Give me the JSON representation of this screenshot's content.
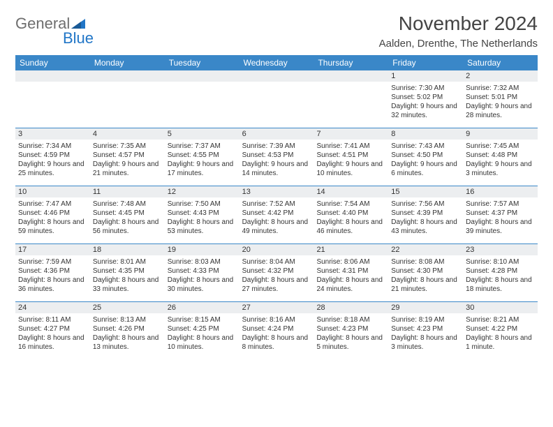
{
  "logo": {
    "word1": "General",
    "word2": "Blue"
  },
  "title": "November 2024",
  "location": "Aalden, Drenthe, The Netherlands",
  "colors": {
    "header_bg": "#3a87c8",
    "header_text": "#ffffff",
    "row_divider": "#3a87c8",
    "daynum_bg": "#eceef0",
    "text": "#333333",
    "logo_gray": "#6e6e6e",
    "logo_blue": "#2176c7",
    "page_bg": "#ffffff"
  },
  "typography": {
    "title_fontsize": 28,
    "location_fontsize": 15,
    "dayhead_fontsize": 12,
    "cell_fontsize": 10
  },
  "day_headers": [
    "Sunday",
    "Monday",
    "Tuesday",
    "Wednesday",
    "Thursday",
    "Friday",
    "Saturday"
  ],
  "weeks": [
    [
      {
        "n": "",
        "sr": "",
        "ss": "",
        "dl": ""
      },
      {
        "n": "",
        "sr": "",
        "ss": "",
        "dl": ""
      },
      {
        "n": "",
        "sr": "",
        "ss": "",
        "dl": ""
      },
      {
        "n": "",
        "sr": "",
        "ss": "",
        "dl": ""
      },
      {
        "n": "",
        "sr": "",
        "ss": "",
        "dl": ""
      },
      {
        "n": "1",
        "sr": "Sunrise: 7:30 AM",
        "ss": "Sunset: 5:02 PM",
        "dl": "Daylight: 9 hours and 32 minutes."
      },
      {
        "n": "2",
        "sr": "Sunrise: 7:32 AM",
        "ss": "Sunset: 5:01 PM",
        "dl": "Daylight: 9 hours and 28 minutes."
      }
    ],
    [
      {
        "n": "3",
        "sr": "Sunrise: 7:34 AM",
        "ss": "Sunset: 4:59 PM",
        "dl": "Daylight: 9 hours and 25 minutes."
      },
      {
        "n": "4",
        "sr": "Sunrise: 7:35 AM",
        "ss": "Sunset: 4:57 PM",
        "dl": "Daylight: 9 hours and 21 minutes."
      },
      {
        "n": "5",
        "sr": "Sunrise: 7:37 AM",
        "ss": "Sunset: 4:55 PM",
        "dl": "Daylight: 9 hours and 17 minutes."
      },
      {
        "n": "6",
        "sr": "Sunrise: 7:39 AM",
        "ss": "Sunset: 4:53 PM",
        "dl": "Daylight: 9 hours and 14 minutes."
      },
      {
        "n": "7",
        "sr": "Sunrise: 7:41 AM",
        "ss": "Sunset: 4:51 PM",
        "dl": "Daylight: 9 hours and 10 minutes."
      },
      {
        "n": "8",
        "sr": "Sunrise: 7:43 AM",
        "ss": "Sunset: 4:50 PM",
        "dl": "Daylight: 9 hours and 6 minutes."
      },
      {
        "n": "9",
        "sr": "Sunrise: 7:45 AM",
        "ss": "Sunset: 4:48 PM",
        "dl": "Daylight: 9 hours and 3 minutes."
      }
    ],
    [
      {
        "n": "10",
        "sr": "Sunrise: 7:47 AM",
        "ss": "Sunset: 4:46 PM",
        "dl": "Daylight: 8 hours and 59 minutes."
      },
      {
        "n": "11",
        "sr": "Sunrise: 7:48 AM",
        "ss": "Sunset: 4:45 PM",
        "dl": "Daylight: 8 hours and 56 minutes."
      },
      {
        "n": "12",
        "sr": "Sunrise: 7:50 AM",
        "ss": "Sunset: 4:43 PM",
        "dl": "Daylight: 8 hours and 53 minutes."
      },
      {
        "n": "13",
        "sr": "Sunrise: 7:52 AM",
        "ss": "Sunset: 4:42 PM",
        "dl": "Daylight: 8 hours and 49 minutes."
      },
      {
        "n": "14",
        "sr": "Sunrise: 7:54 AM",
        "ss": "Sunset: 4:40 PM",
        "dl": "Daylight: 8 hours and 46 minutes."
      },
      {
        "n": "15",
        "sr": "Sunrise: 7:56 AM",
        "ss": "Sunset: 4:39 PM",
        "dl": "Daylight: 8 hours and 43 minutes."
      },
      {
        "n": "16",
        "sr": "Sunrise: 7:57 AM",
        "ss": "Sunset: 4:37 PM",
        "dl": "Daylight: 8 hours and 39 minutes."
      }
    ],
    [
      {
        "n": "17",
        "sr": "Sunrise: 7:59 AM",
        "ss": "Sunset: 4:36 PM",
        "dl": "Daylight: 8 hours and 36 minutes."
      },
      {
        "n": "18",
        "sr": "Sunrise: 8:01 AM",
        "ss": "Sunset: 4:35 PM",
        "dl": "Daylight: 8 hours and 33 minutes."
      },
      {
        "n": "19",
        "sr": "Sunrise: 8:03 AM",
        "ss": "Sunset: 4:33 PM",
        "dl": "Daylight: 8 hours and 30 minutes."
      },
      {
        "n": "20",
        "sr": "Sunrise: 8:04 AM",
        "ss": "Sunset: 4:32 PM",
        "dl": "Daylight: 8 hours and 27 minutes."
      },
      {
        "n": "21",
        "sr": "Sunrise: 8:06 AM",
        "ss": "Sunset: 4:31 PM",
        "dl": "Daylight: 8 hours and 24 minutes."
      },
      {
        "n": "22",
        "sr": "Sunrise: 8:08 AM",
        "ss": "Sunset: 4:30 PM",
        "dl": "Daylight: 8 hours and 21 minutes."
      },
      {
        "n": "23",
        "sr": "Sunrise: 8:10 AM",
        "ss": "Sunset: 4:28 PM",
        "dl": "Daylight: 8 hours and 18 minutes."
      }
    ],
    [
      {
        "n": "24",
        "sr": "Sunrise: 8:11 AM",
        "ss": "Sunset: 4:27 PM",
        "dl": "Daylight: 8 hours and 16 minutes."
      },
      {
        "n": "25",
        "sr": "Sunrise: 8:13 AM",
        "ss": "Sunset: 4:26 PM",
        "dl": "Daylight: 8 hours and 13 minutes."
      },
      {
        "n": "26",
        "sr": "Sunrise: 8:15 AM",
        "ss": "Sunset: 4:25 PM",
        "dl": "Daylight: 8 hours and 10 minutes."
      },
      {
        "n": "27",
        "sr": "Sunrise: 8:16 AM",
        "ss": "Sunset: 4:24 PM",
        "dl": "Daylight: 8 hours and 8 minutes."
      },
      {
        "n": "28",
        "sr": "Sunrise: 8:18 AM",
        "ss": "Sunset: 4:23 PM",
        "dl": "Daylight: 8 hours and 5 minutes."
      },
      {
        "n": "29",
        "sr": "Sunrise: 8:19 AM",
        "ss": "Sunset: 4:23 PM",
        "dl": "Daylight: 8 hours and 3 minutes."
      },
      {
        "n": "30",
        "sr": "Sunrise: 8:21 AM",
        "ss": "Sunset: 4:22 PM",
        "dl": "Daylight: 8 hours and 1 minute."
      }
    ]
  ]
}
